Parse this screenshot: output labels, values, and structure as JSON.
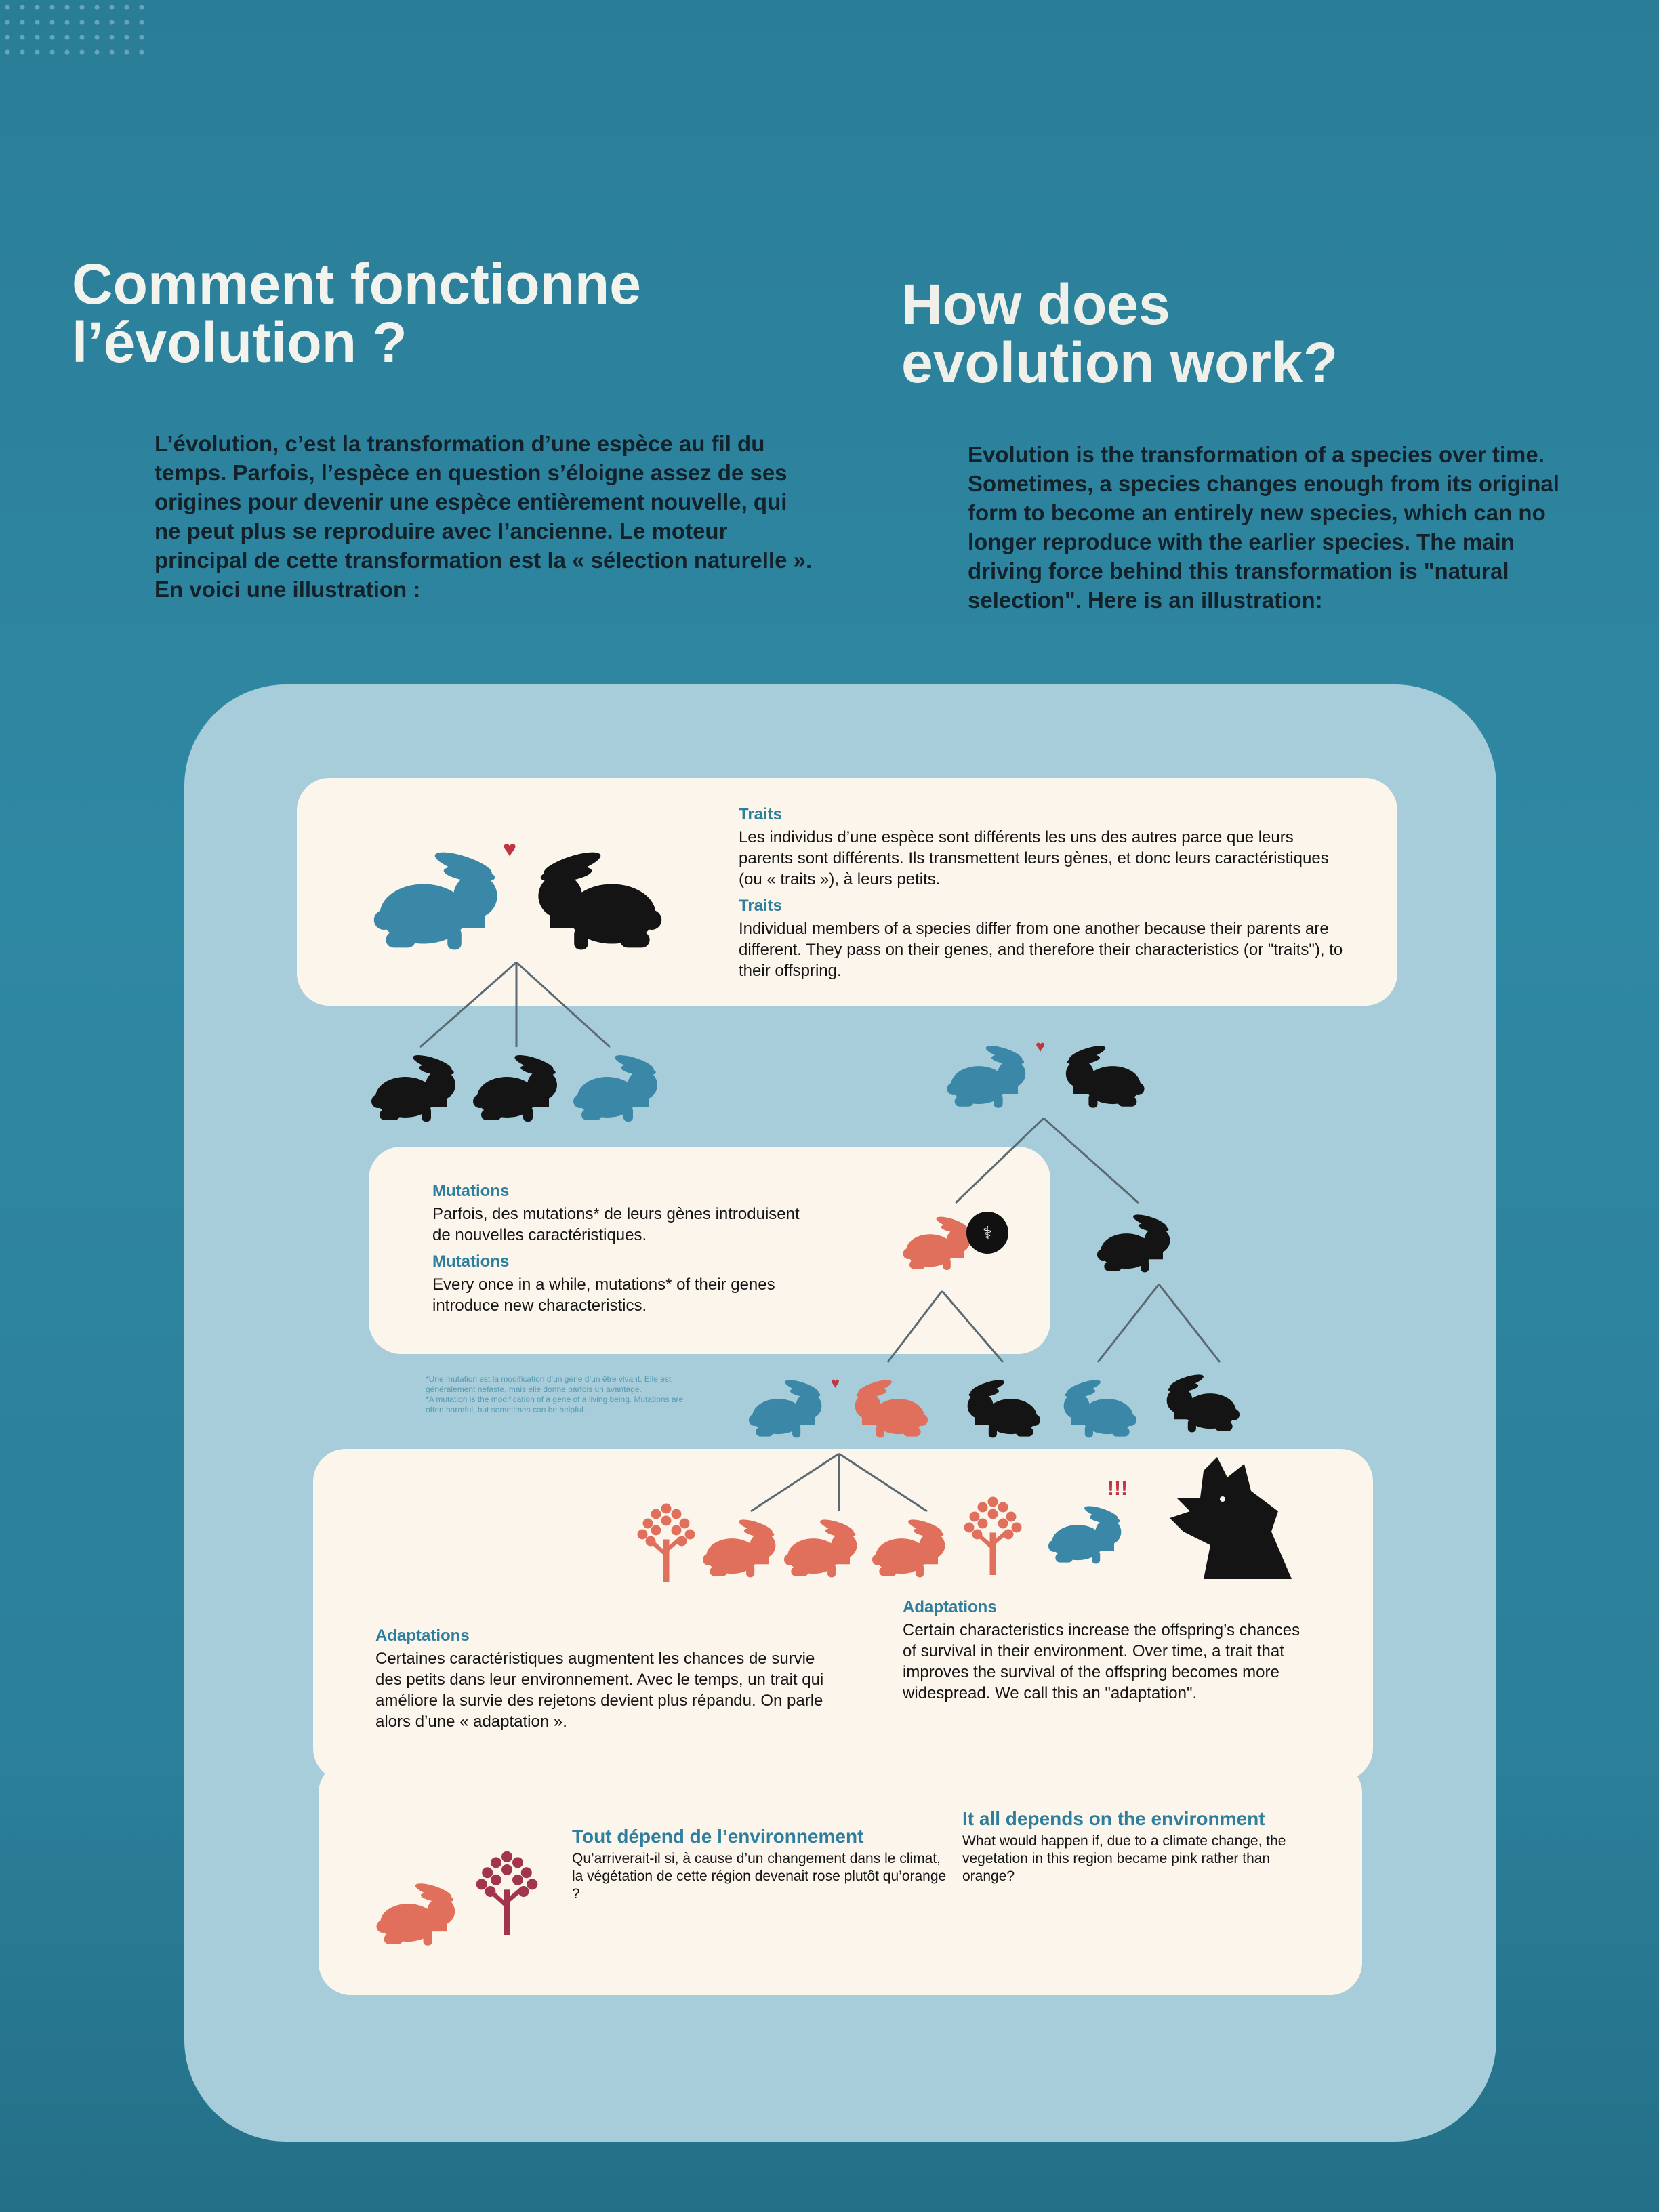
{
  "heading": {
    "fr_line1": "Comment fonctionne",
    "fr_line2": "l’évolution ?",
    "en_line1": "How does",
    "en_line2": "evolution work?"
  },
  "intro": {
    "fr": "L’évolution, c’est la transformation d’une espèce au fil du temps. Parfois, l’espèce en question s’éloigne assez de ses origines pour devenir une espèce entièrement nouvelle, qui ne peut plus se reproduire avec l’ancienne. Le moteur principal de cette transformation est la « sélection naturelle ». En voici une illustration :",
    "en": "Evolution is the transformation of a species over time. Sometimes, a species changes enough from its original form to become an entirely new species, which can no longer reproduce with the earlier species. The main driving force behind this transformation is \"natural selection\". Here is an illustration:"
  },
  "traits": {
    "label_fr": "Traits",
    "text_fr": "Les individus d’une espèce sont différents les uns des autres parce que leurs parents sont différents. Ils transmettent leurs gènes, et donc leurs caractéristiques (ou « traits »), à leurs petits.",
    "label_en": "Traits",
    "text_en": "Individual members of a species differ from one another because their parents are different. They pass on their genes, and therefore their characteristics (or \"traits\"), to their offspring."
  },
  "mutations": {
    "label_fr": "Mutations",
    "text_fr": "Parfois, des mutations* de leurs gènes introduisent de nouvelles caractéristiques.",
    "label_en": "Mutations",
    "text_en": "Every once in a while, mutations* of their genes introduce new characteristics.",
    "footnote_fr": "*Une mutation est la modification d’un gène d’un être vivant. Elle est généralement néfaste, mais elle donne parfois un avantage.",
    "footnote_en": "*A mutation is the modification of a gene of a living being. Mutations are often harmful, but sometimes can be helpful."
  },
  "adaptations": {
    "label_fr": "Adaptations",
    "text_fr": "Certaines caractéristiques augmentent les chances de survie des petits dans leur environnement. Avec le temps, un trait qui améliore la survie des rejetons devient plus répandu. On parle alors d’une « adaptation ».",
    "label_en": "Adaptations",
    "text_en": "Certain characteristics increase the offspring’s chances of survival in their environment. Over time, a trait that improves the survival of the offspring becomes more widespread. We call this an \"adaptation\"."
  },
  "environment": {
    "label_fr": "Tout dépend de l’environnement",
    "text_fr": "Qu’arriverait-il si, à cause d’un changement dans le climat, la végétation de cette région devenait rose plutôt qu’orange ?",
    "label_en": "It all depends on the environment",
    "text_en": "What would happen if, due to a climate change, the vegetation in this region became pink rather than orange?"
  },
  "colors": {
    "blue_rabbit": "#3a87a8",
    "black_rabbit": "#141414",
    "orange_rabbit": "#e0705c",
    "pink_tree": "#a2354a",
    "heart": "#c0353f"
  }
}
